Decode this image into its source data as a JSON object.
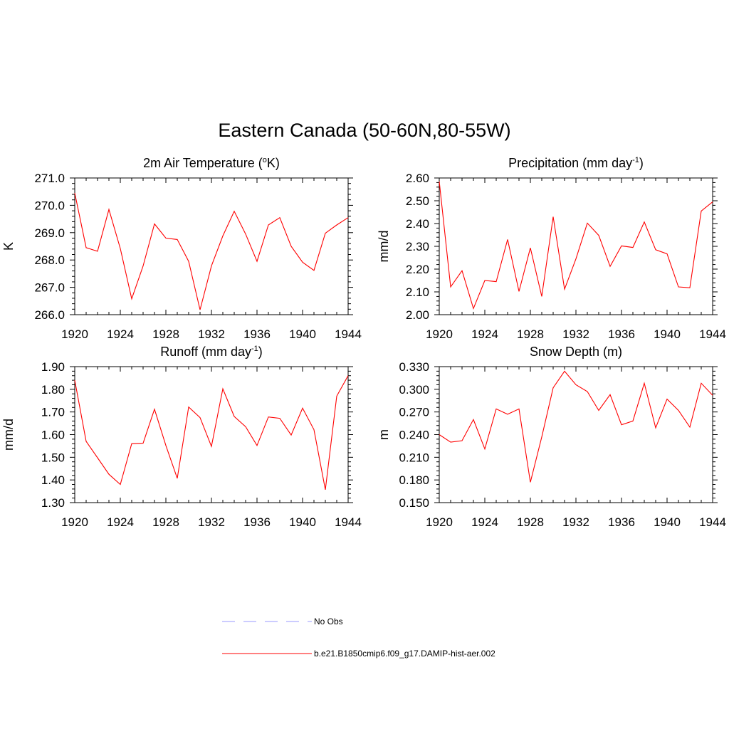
{
  "main_title": "Eastern Canada (50-60N,80-55W)",
  "legend": [
    {
      "label": "No Obs",
      "color": "#9999ff",
      "dash": true
    },
    {
      "label": "b.e21.B1850cmip6.f09_g17.DAMIP-hist-aer.002",
      "color": "#ff0000",
      "dash": false
    }
  ],
  "panel_titles": [
    {
      "text": "2m Air Temperature (",
      "sup": "o",
      "post": "K)"
    },
    {
      "text": "Precipitation (mm day",
      "sup": "-1",
      "post": ")"
    },
    {
      "text": "Runoff (mm day",
      "sup": "-1",
      "post": ")"
    },
    {
      "text": "Snow Depth (m)",
      "sup": "",
      "post": ""
    }
  ],
  "chart_data": [
    {
      "type": "line",
      "title": "2m Air Temperature (oK)",
      "xlabel": "",
      "ylabel": "K",
      "xlim": [
        1920,
        1944
      ],
      "ylim": [
        266.0,
        271.0
      ],
      "xticks": [
        "1920",
        "1924",
        "1928",
        "1932",
        "1936",
        "1940",
        "1944"
      ],
      "yticks": [
        "266.0",
        "267.0",
        "268.0",
        "269.0",
        "270.0",
        "271.0"
      ],
      "x": [
        1920,
        1921,
        1922,
        1923,
        1924,
        1925,
        1926,
        1927,
        1928,
        1929,
        1930,
        1931,
        1932,
        1933,
        1934,
        1935,
        1936,
        1937,
        1938,
        1939,
        1940,
        1941,
        1942,
        1943,
        1944
      ],
      "series": [
        {
          "color": "#ff0000",
          "values": [
            270.45,
            268.45,
            268.32,
            269.85,
            268.42,
            266.58,
            267.78,
            269.32,
            268.8,
            268.75,
            267.95,
            266.18,
            267.78,
            268.88,
            269.78,
            268.95,
            267.95,
            269.28,
            269.55,
            268.5,
            267.92,
            267.62,
            268.98,
            269.28,
            269.55
          ]
        }
      ]
    },
    {
      "type": "line",
      "title": "Precipitation (mm day-1)",
      "xlabel": "",
      "ylabel": "mm/d",
      "xlim": [
        1920,
        1944
      ],
      "ylim": [
        2.0,
        2.6
      ],
      "xticks": [
        "1920",
        "1924",
        "1928",
        "1932",
        "1936",
        "1940",
        "1944"
      ],
      "yticks": [
        "2.00",
        "2.10",
        "2.20",
        "2.30",
        "2.40",
        "2.50",
        "2.60"
      ],
      "x": [
        1920,
        1921,
        1922,
        1923,
        1924,
        1925,
        1926,
        1927,
        1928,
        1929,
        1930,
        1931,
        1932,
        1933,
        1934,
        1935,
        1936,
        1937,
        1938,
        1939,
        1940,
        1941,
        1942,
        1943,
        1944
      ],
      "series": [
        {
          "color": "#ff0000",
          "values": [
            2.585,
            2.122,
            2.193,
            2.027,
            2.15,
            2.145,
            2.33,
            2.102,
            2.293,
            2.08,
            2.43,
            2.112,
            2.245,
            2.402,
            2.348,
            2.212,
            2.302,
            2.295,
            2.407,
            2.285,
            2.267,
            2.122,
            2.118,
            2.455,
            2.495
          ]
        }
      ]
    },
    {
      "type": "line",
      "title": "Runoff (mm day-1)",
      "xlabel": "",
      "ylabel": "mm/d",
      "xlim": [
        1920,
        1944
      ],
      "ylim": [
        1.3,
        1.9
      ],
      "xticks": [
        "1920",
        "1924",
        "1928",
        "1932",
        "1936",
        "1940",
        "1944"
      ],
      "yticks": [
        "1.30",
        "1.40",
        "1.50",
        "1.60",
        "1.70",
        "1.80",
        "1.90"
      ],
      "x": [
        1920,
        1921,
        1922,
        1923,
        1924,
        1925,
        1926,
        1927,
        1928,
        1929,
        1930,
        1931,
        1932,
        1933,
        1934,
        1935,
        1936,
        1937,
        1938,
        1939,
        1940,
        1941,
        1942,
        1943,
        1944
      ],
      "series": [
        {
          "color": "#ff0000",
          "values": [
            1.84,
            1.57,
            1.498,
            1.425,
            1.38,
            1.56,
            1.562,
            1.712,
            1.552,
            1.407,
            1.722,
            1.675,
            1.548,
            1.802,
            1.68,
            1.635,
            1.552,
            1.678,
            1.672,
            1.598,
            1.717,
            1.622,
            1.357,
            1.77,
            1.86
          ]
        }
      ]
    },
    {
      "type": "line",
      "title": "Snow Depth (m)",
      "xlabel": "",
      "ylabel": "m",
      "xlim": [
        1920,
        1944
      ],
      "ylim": [
        0.15,
        0.33
      ],
      "xticks": [
        "1920",
        "1924",
        "1928",
        "1932",
        "1936",
        "1940",
        "1944"
      ],
      "yticks": [
        "0.150",
        "0.180",
        "0.210",
        "0.240",
        "0.270",
        "0.300",
        "0.330"
      ],
      "x": [
        1920,
        1921,
        1922,
        1923,
        1924,
        1925,
        1926,
        1927,
        1928,
        1929,
        1930,
        1931,
        1932,
        1933,
        1934,
        1935,
        1936,
        1937,
        1938,
        1939,
        1940,
        1941,
        1942,
        1943,
        1944
      ],
      "series": [
        {
          "color": "#ff0000",
          "values": [
            0.24,
            0.23,
            0.232,
            0.26,
            0.221,
            0.274,
            0.267,
            0.274,
            0.177,
            0.237,
            0.302,
            0.324,
            0.306,
            0.297,
            0.272,
            0.293,
            0.253,
            0.258,
            0.308,
            0.249,
            0.287,
            0.272,
            0.25,
            0.308,
            0.292
          ]
        }
      ]
    }
  ]
}
